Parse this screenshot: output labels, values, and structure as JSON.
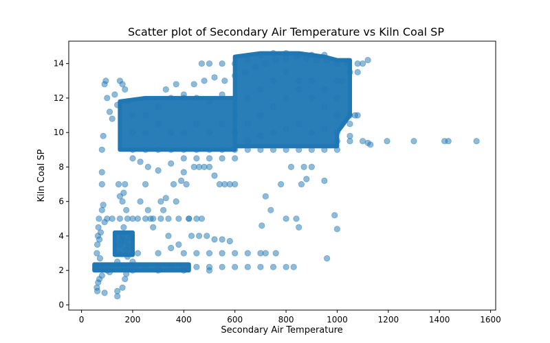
{
  "chart_data": {
    "type": "scatter",
    "title": "Scatter plot of Secondary Air Temperature vs Kiln Coal SP",
    "xlabel": "Secondary Air Temperature",
    "ylabel": "Kiln Coal SP",
    "xlim": [
      -50,
      1620
    ],
    "ylim": [
      -0.3,
      15.3
    ],
    "xticks": [
      0,
      200,
      400,
      600,
      800,
      1000,
      1200,
      1400,
      1600
    ],
    "yticks": [
      0,
      2,
      4,
      6,
      8,
      10,
      12,
      14
    ],
    "grid": false,
    "legend": "none",
    "marker_color": "#1f77b4",
    "marker_alpha": 0.5,
    "series": [
      {
        "points": [
          [
            55,
            2.2
          ],
          [
            70,
            2.2
          ],
          [
            90,
            2.2
          ],
          [
            120,
            2.2
          ],
          [
            150,
            2.2
          ],
          [
            180,
            2.2
          ],
          [
            210,
            2.2
          ],
          [
            250,
            2.2
          ],
          [
            300,
            2.2
          ],
          [
            350,
            2.2
          ],
          [
            400,
            2.2
          ],
          [
            450,
            2.2
          ],
          [
            500,
            2.2
          ],
          [
            550,
            2.2
          ],
          [
            600,
            2.2
          ],
          [
            650,
            2.2
          ],
          [
            700,
            2.2
          ],
          [
            750,
            2.2
          ],
          [
            800,
            2.2
          ],
          [
            830,
            2.2
          ],
          [
            100,
            2.0
          ],
          [
            200,
            2.0
          ],
          [
            300,
            2.0
          ],
          [
            400,
            2.0
          ],
          [
            500,
            2.0
          ],
          [
            60,
            1.0
          ],
          [
            62,
            0.8
          ],
          [
            65,
            1.3
          ],
          [
            70,
            1.5
          ],
          [
            80,
            1.7
          ],
          [
            90,
            0.7
          ],
          [
            110,
            1.9
          ],
          [
            140,
            0.5
          ],
          [
            140,
            0.8
          ],
          [
            160,
            1.0
          ],
          [
            170,
            1.5
          ],
          [
            175,
            1.8
          ],
          [
            60,
            3.0
          ],
          [
            62,
            3.5
          ],
          [
            64,
            4.0
          ],
          [
            66,
            4.5
          ],
          [
            68,
            5.0
          ],
          [
            70,
            3.8
          ],
          [
            72,
            2.7
          ],
          [
            75,
            4.2
          ],
          [
            80,
            5.5
          ],
          [
            85,
            5.8
          ],
          [
            90,
            4.8
          ],
          [
            100,
            5.0
          ],
          [
            120,
            5.0
          ],
          [
            150,
            5.0
          ],
          [
            180,
            5.0
          ],
          [
            200,
            5.0
          ],
          [
            220,
            5.0
          ],
          [
            250,
            5.0
          ],
          [
            280,
            5.0
          ],
          [
            310,
            5.0
          ],
          [
            340,
            5.0
          ],
          [
            380,
            5.0
          ],
          [
            420,
            5.0
          ],
          [
            450,
            5.0
          ],
          [
            470,
            5.0
          ],
          [
            80,
            7.0
          ],
          [
            80,
            7.7
          ],
          [
            80,
            9.0
          ],
          [
            85,
            9.8
          ],
          [
            90,
            12.8
          ],
          [
            95,
            13.0
          ],
          [
            100,
            12.0
          ],
          [
            110,
            11.2
          ],
          [
            120,
            10.8
          ],
          [
            130,
            12.2
          ],
          [
            140,
            11.6
          ],
          [
            150,
            13.0
          ],
          [
            160,
            12.8
          ],
          [
            170,
            12.5
          ],
          [
            180,
            11.8
          ],
          [
            140,
            2.5
          ],
          [
            145,
            3.0
          ],
          [
            150,
            3.5
          ],
          [
            155,
            3.8
          ],
          [
            160,
            4.0
          ],
          [
            165,
            4.5
          ],
          [
            170,
            3.7
          ],
          [
            175,
            3.2
          ],
          [
            180,
            2.8
          ],
          [
            185,
            3.4
          ],
          [
            190,
            3.9
          ],
          [
            160,
            6.0
          ],
          [
            165,
            6.5
          ],
          [
            170,
            7.0
          ],
          [
            175,
            5.5
          ],
          [
            145,
            7.0
          ],
          [
            150,
            6.3
          ],
          [
            200,
            2.5
          ],
          [
            220,
            3.0
          ],
          [
            230,
            6.0
          ],
          [
            250,
            7.0
          ],
          [
            260,
            5.5
          ],
          [
            270,
            5.0
          ],
          [
            280,
            4.5
          ],
          [
            300,
            3.0
          ],
          [
            310,
            6.0
          ],
          [
            320,
            5.5
          ],
          [
            330,
            6.2
          ],
          [
            340,
            4.0
          ],
          [
            350,
            3.3
          ],
          [
            360,
            7.0
          ],
          [
            370,
            6.0
          ],
          [
            380,
            3.5
          ],
          [
            390,
            7.2
          ],
          [
            400,
            7.7
          ],
          [
            410,
            7.0
          ],
          [
            420,
            5.0
          ],
          [
            440,
            8.0
          ],
          [
            460,
            8.0
          ],
          [
            480,
            8.0
          ],
          [
            500,
            8.0
          ],
          [
            520,
            7.5
          ],
          [
            540,
            7.0
          ],
          [
            560,
            7.0
          ],
          [
            580,
            7.0
          ],
          [
            600,
            7.0
          ],
          [
            400,
            3.0
          ],
          [
            450,
            3.0
          ],
          [
            500,
            3.0
          ],
          [
            550,
            3.0
          ],
          [
            600,
            3.0
          ],
          [
            650,
            3.0
          ],
          [
            700,
            3.0
          ],
          [
            720,
            3.0
          ],
          [
            760,
            3.0
          ],
          [
            430,
            4.0
          ],
          [
            460,
            4.0
          ],
          [
            490,
            4.0
          ],
          [
            520,
            3.8
          ],
          [
            550,
            3.8
          ],
          [
            580,
            3.7
          ],
          [
            200,
            9.0
          ],
          [
            250,
            9.0
          ],
          [
            300,
            9.0
          ],
          [
            350,
            9.0
          ],
          [
            400,
            9.0
          ],
          [
            450,
            9.0
          ],
          [
            500,
            9.0
          ],
          [
            550,
            9.0
          ],
          [
            600,
            9.0
          ],
          [
            650,
            9.0
          ],
          [
            700,
            9.0
          ],
          [
            750,
            9.0
          ],
          [
            800,
            9.0
          ],
          [
            850,
            9.0
          ],
          [
            900,
            9.0
          ],
          [
            950,
            9.0
          ],
          [
            1000,
            9.0
          ],
          [
            200,
            8.5
          ],
          [
            230,
            8.3
          ],
          [
            260,
            8.0
          ],
          [
            300,
            7.8
          ],
          [
            350,
            8.2
          ],
          [
            400,
            8.5
          ],
          [
            450,
            8.5
          ],
          [
            500,
            8.5
          ],
          [
            550,
            8.5
          ],
          [
            600,
            8.5
          ],
          [
            720,
            6.3
          ],
          [
            740,
            5.5
          ],
          [
            705,
            4.6
          ],
          [
            780,
            7.0
          ],
          [
            800,
            5.0
          ],
          [
            820,
            8.0
          ],
          [
            840,
            5.0
          ],
          [
            850,
            4.5
          ],
          [
            860,
            7.0
          ],
          [
            870,
            8.0
          ],
          [
            880,
            7.3
          ],
          [
            900,
            8.0
          ],
          [
            950,
            7.2
          ],
          [
            960,
            2.7
          ],
          [
            990,
            5.2
          ],
          [
            1000,
            4.4
          ],
          [
            1000,
            9.5
          ],
          [
            1050,
            9.5
          ],
          [
            1100,
            9.5
          ],
          [
            1120,
            9.4
          ],
          [
            1130,
            9.3
          ],
          [
            1195,
            9.5
          ],
          [
            1300,
            9.5
          ],
          [
            1420,
            9.5
          ],
          [
            1435,
            9.5
          ],
          [
            1545,
            9.5
          ],
          [
            1050,
            11.0
          ],
          [
            1070,
            11.0
          ],
          [
            1080,
            11.0
          ],
          [
            1000,
            13.0
          ],
          [
            1020,
            13.0
          ],
          [
            1050,
            13.5
          ],
          [
            1080,
            13.5
          ],
          [
            1100,
            14.0
          ],
          [
            1120,
            14.2
          ],
          [
            200,
            11.0
          ],
          [
            250,
            11.0
          ],
          [
            300,
            11.5
          ],
          [
            350,
            12.0
          ],
          [
            400,
            12.0
          ],
          [
            450,
            12.0
          ],
          [
            500,
            11.8
          ],
          [
            550,
            12.2
          ],
          [
            600,
            12.0
          ],
          [
            200,
            10.0
          ],
          [
            250,
            10.0
          ],
          [
            300,
            10.5
          ],
          [
            350,
            10.0
          ],
          [
            400,
            10.0
          ],
          [
            450,
            10.5
          ],
          [
            500,
            10.0
          ],
          [
            550,
            10.5
          ],
          [
            600,
            10.0
          ],
          [
            330,
            12.5
          ],
          [
            370,
            12.8
          ],
          [
            400,
            12.2
          ],
          [
            440,
            12.8
          ],
          [
            480,
            13.0
          ],
          [
            520,
            13.2
          ],
          [
            560,
            13.0
          ],
          [
            600,
            13.3
          ],
          [
            640,
            13.5
          ],
          [
            680,
            13.8
          ],
          [
            720,
            14.0
          ],
          [
            760,
            14.2
          ],
          [
            800,
            14.3
          ],
          [
            840,
            14.4
          ],
          [
            880,
            14.3
          ],
          [
            920,
            14.2
          ],
          [
            960,
            14.2
          ],
          [
            1000,
            14.0
          ],
          [
            1040,
            14.0
          ],
          [
            1080,
            14.0
          ],
          [
            470,
            14.0
          ],
          [
            500,
            14.0
          ],
          [
            550,
            14.0
          ],
          [
            600,
            14.0
          ],
          [
            650,
            14.2
          ],
          [
            700,
            14.5
          ],
          [
            750,
            14.6
          ],
          [
            800,
            14.6
          ],
          [
            850,
            14.5
          ],
          [
            900,
            14.5
          ],
          [
            950,
            14.5
          ],
          [
            600,
            10.0
          ],
          [
            650,
            10.5
          ],
          [
            700,
            11.0
          ],
          [
            750,
            11.5
          ],
          [
            800,
            12.0
          ],
          [
            850,
            12.5
          ],
          [
            900,
            12.0
          ],
          [
            950,
            11.5
          ],
          [
            1000,
            11.0
          ],
          [
            1050,
            10.5
          ],
          [
            600,
            11.0
          ],
          [
            650,
            12.0
          ],
          [
            700,
            12.5
          ],
          [
            750,
            13.0
          ],
          [
            800,
            13.5
          ],
          [
            850,
            13.0
          ],
          [
            900,
            13.0
          ],
          [
            950,
            12.5
          ],
          [
            1000,
            12.0
          ],
          [
            650,
            9.5
          ],
          [
            700,
            9.8
          ],
          [
            750,
            10.0
          ],
          [
            800,
            10.2
          ],
          [
            850,
            10.5
          ],
          [
            900,
            10.0
          ],
          [
            950,
            10.2
          ],
          [
            1000,
            10.0
          ],
          [
            1050,
            9.8
          ]
        ]
      }
    ]
  }
}
